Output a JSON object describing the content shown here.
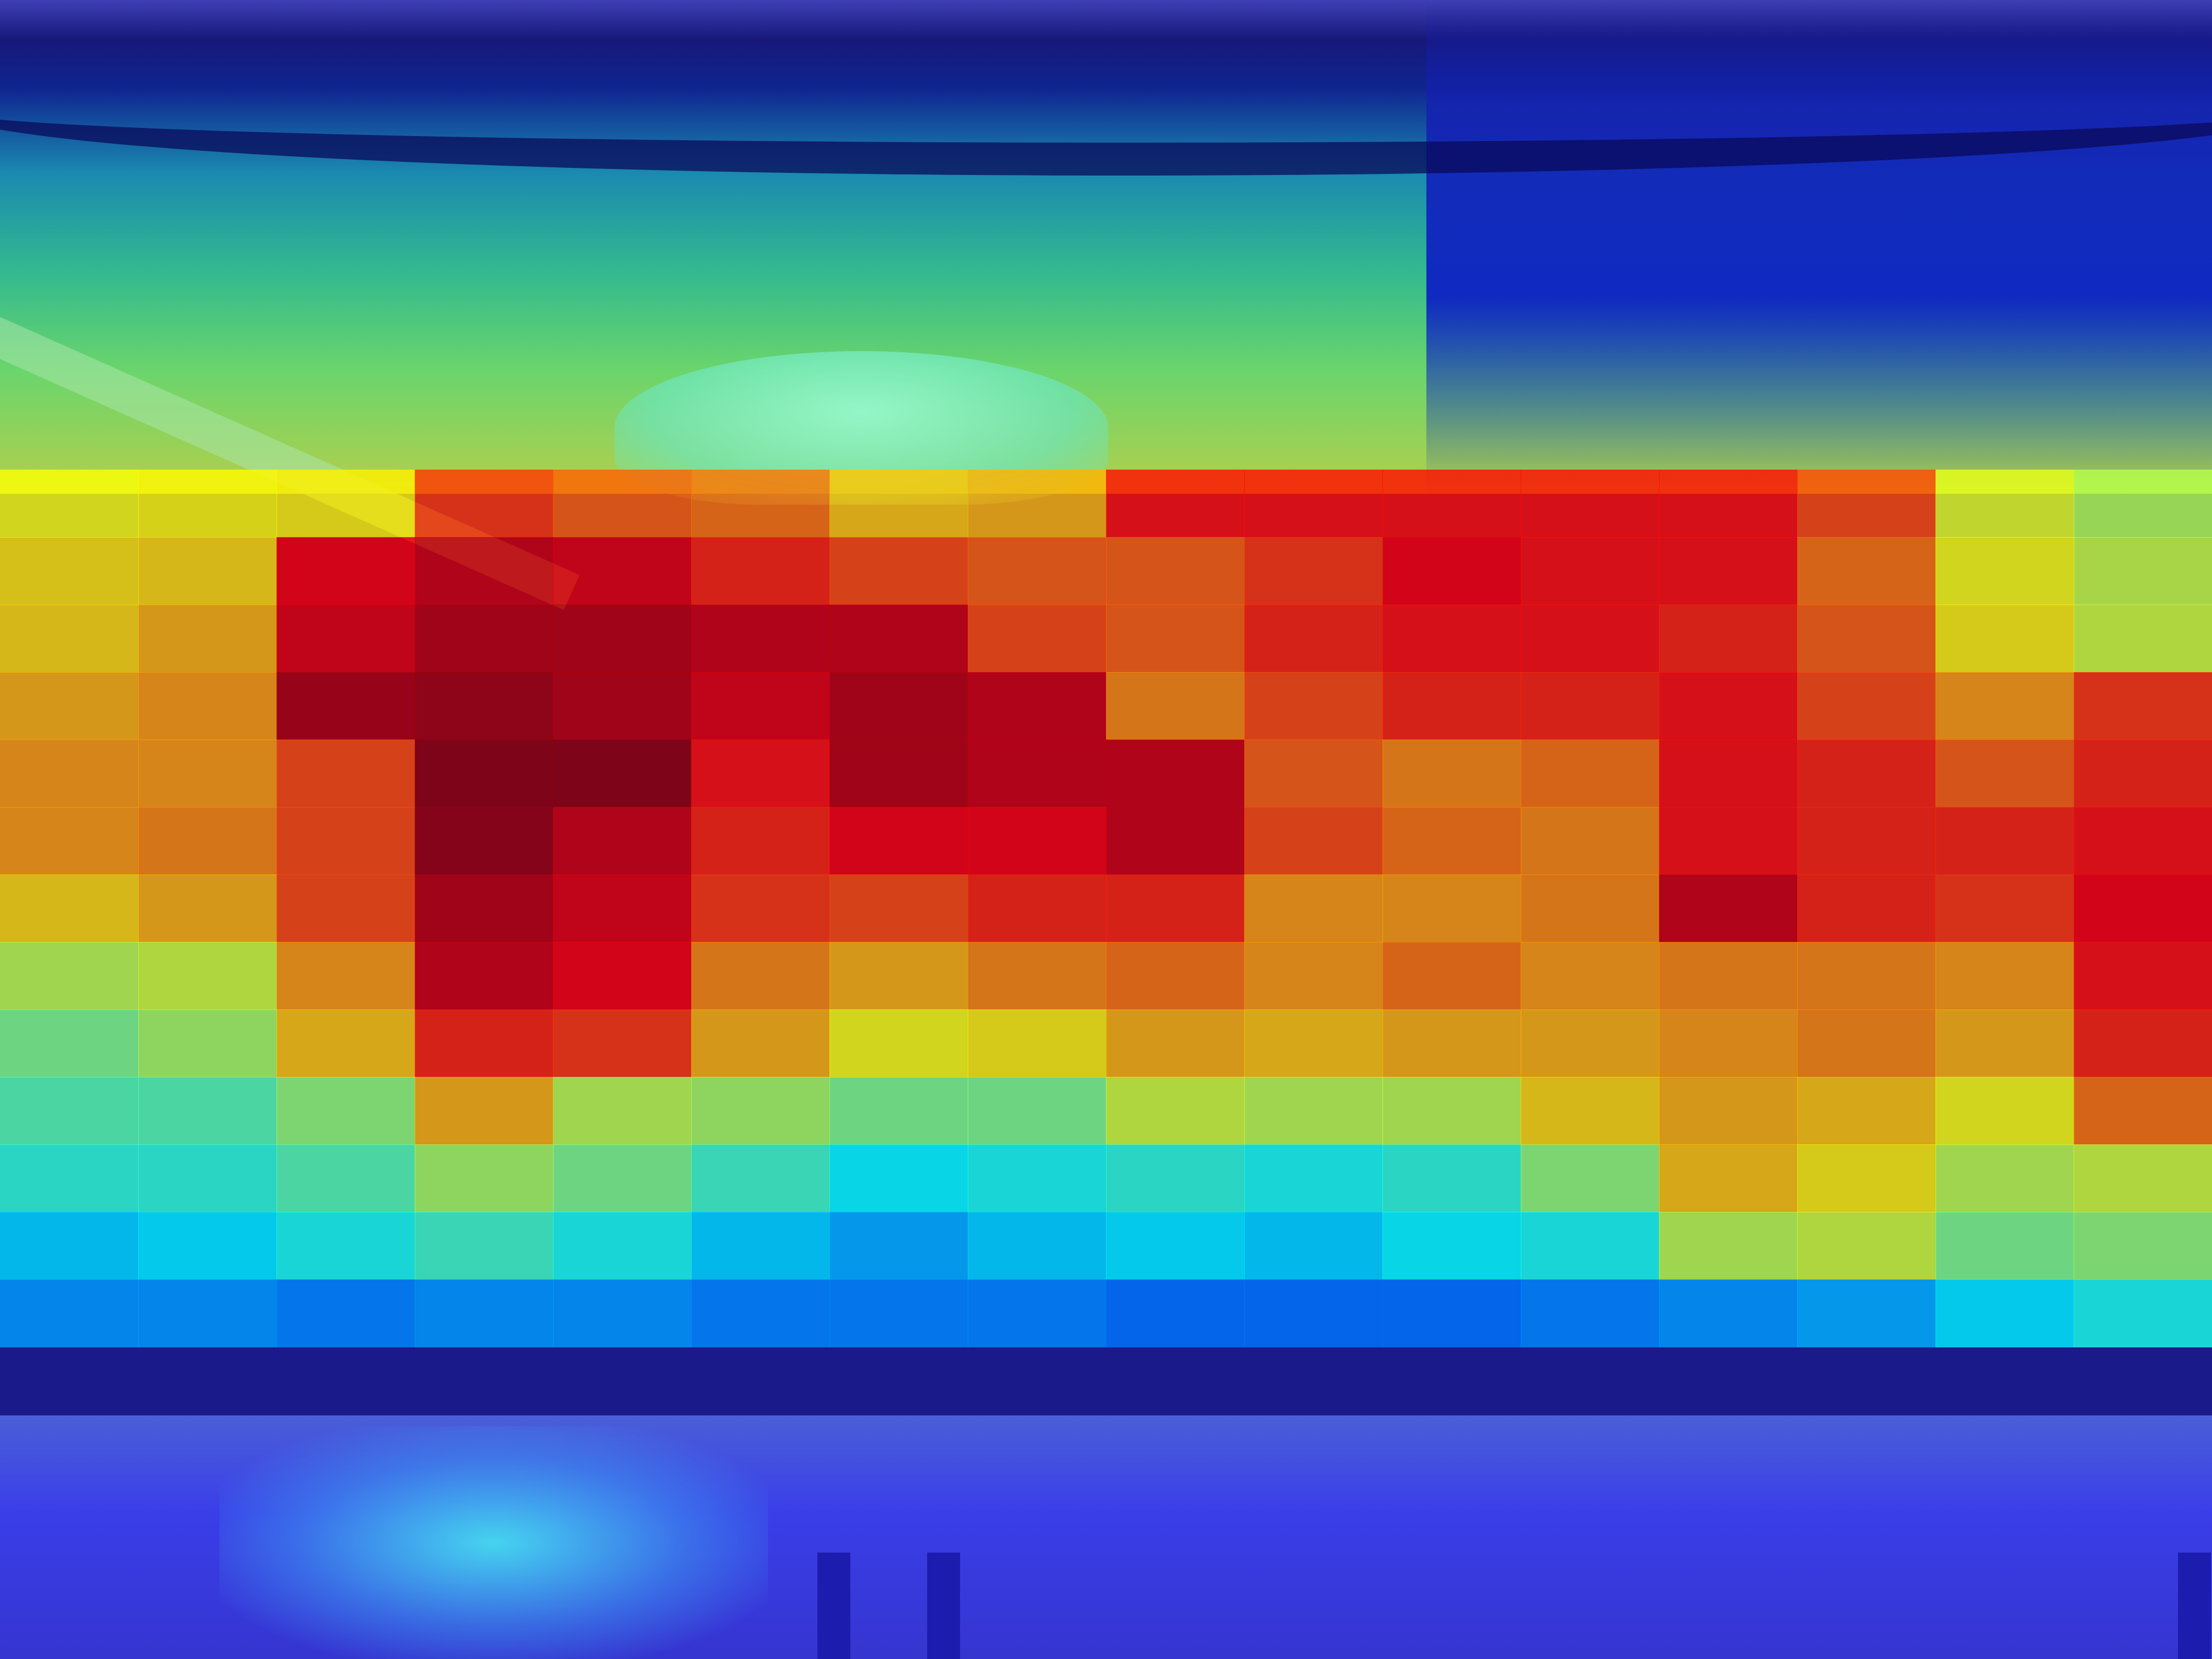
{
  "image": {
    "description_kind": "heatmap-overlay-photo",
    "colormap": "jet",
    "colors": {
      "cold": "#1a1aa0",
      "cool": "#36c7d9",
      "mid": "#8fe36a",
      "warm": "#f4a83a",
      "hot": "#c81e1e",
      "very_hot": "#7a1020"
    }
  },
  "heatmap": {
    "cols": 16,
    "rows": 14,
    "grid": [
      [
        null,
        null,
        null,
        null,
        null,
        null,
        null,
        null,
        null,
        null,
        null,
        null,
        null,
        null,
        null,
        null
      ],
      [
        0.62,
        0.63,
        0.64,
        0.82,
        0.78,
        0.76,
        0.68,
        0.7,
        0.86,
        0.86,
        0.86,
        0.86,
        0.86,
        0.8,
        0.6,
        0.55
      ],
      [
        0.65,
        0.66,
        0.88,
        0.92,
        0.9,
        0.84,
        0.8,
        0.78,
        0.78,
        0.82,
        0.88,
        0.86,
        0.86,
        0.76,
        0.62,
        0.57
      ],
      [
        0.66,
        0.7,
        0.9,
        0.94,
        0.94,
        0.92,
        0.92,
        0.8,
        0.78,
        0.84,
        0.86,
        0.86,
        0.84,
        0.78,
        0.64,
        0.58
      ],
      [
        0.7,
        0.72,
        0.95,
        0.96,
        0.94,
        0.9,
        0.94,
        0.92,
        0.74,
        0.8,
        0.84,
        0.84,
        0.86,
        0.8,
        0.72,
        0.82
      ],
      [
        0.72,
        0.72,
        0.8,
        0.98,
        0.98,
        0.86,
        0.94,
        0.92,
        0.92,
        0.78,
        0.74,
        0.76,
        0.86,
        0.84,
        0.78,
        0.84
      ],
      [
        0.72,
        0.74,
        0.8,
        0.97,
        0.92,
        0.84,
        0.88,
        0.88,
        0.92,
        0.8,
        0.76,
        0.74,
        0.86,
        0.84,
        0.84,
        0.86
      ],
      [
        0.66,
        0.7,
        0.8,
        0.94,
        0.9,
        0.82,
        0.8,
        0.84,
        0.84,
        0.72,
        0.72,
        0.74,
        0.92,
        0.84,
        0.82,
        0.88
      ],
      [
        0.56,
        0.58,
        0.72,
        0.92,
        0.88,
        0.74,
        0.7,
        0.74,
        0.76,
        0.72,
        0.76,
        0.72,
        0.74,
        0.74,
        0.72,
        0.86
      ],
      [
        0.5,
        0.54,
        0.68,
        0.84,
        0.82,
        0.7,
        0.62,
        0.64,
        0.7,
        0.68,
        0.7,
        0.7,
        0.72,
        0.74,
        0.7,
        0.84
      ],
      [
        0.46,
        0.46,
        0.52,
        0.7,
        0.56,
        0.54,
        0.5,
        0.5,
        0.58,
        0.56,
        0.56,
        0.66,
        0.7,
        0.68,
        0.62,
        0.76
      ],
      [
        0.42,
        0.42,
        0.46,
        0.54,
        0.5,
        0.44,
        0.38,
        0.4,
        0.42,
        0.4,
        0.42,
        0.52,
        0.68,
        0.64,
        0.56,
        0.58
      ],
      [
        0.34,
        0.36,
        0.4,
        0.44,
        0.4,
        0.34,
        0.3,
        0.34,
        0.36,
        0.34,
        0.38,
        0.4,
        0.56,
        0.58,
        0.5,
        0.52
      ],
      [
        0.28,
        0.28,
        0.26,
        0.28,
        0.28,
        0.26,
        0.26,
        0.26,
        0.24,
        0.24,
        0.24,
        0.26,
        0.28,
        0.3,
        0.36,
        0.4
      ]
    ]
  }
}
